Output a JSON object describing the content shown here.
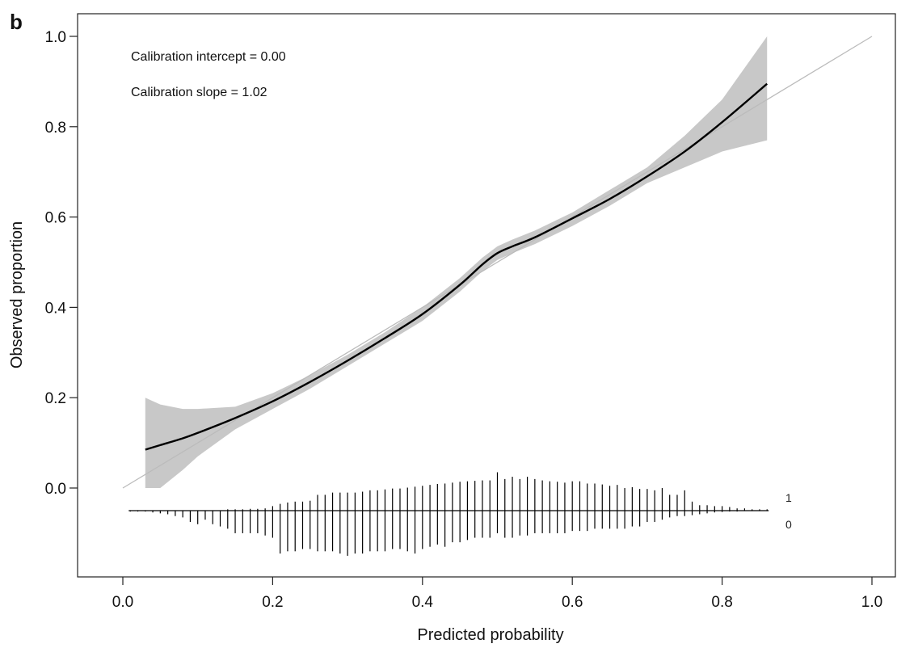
{
  "panel_label": "b",
  "chart_data": {
    "type": "line",
    "xlabel": "Predicted probability",
    "ylabel": "Observed proportion",
    "xlim": [
      0.0,
      1.0
    ],
    "ylim": [
      0.0,
      1.0
    ],
    "xticks": [
      "0.0",
      "0.2",
      "0.4",
      "0.6",
      "0.8",
      "1.0"
    ],
    "yticks": [
      "0.0",
      "0.2",
      "0.4",
      "0.6",
      "0.8",
      "1.0"
    ],
    "grid": false,
    "legend": "none",
    "annotations": [
      "Calibration intercept = 0.00",
      "Calibration slope = 1.02"
    ],
    "reference_line": {
      "x": [
        0.0,
        1.0
      ],
      "y": [
        0.0,
        1.0
      ],
      "color": "#bbbbbb"
    },
    "series": [
      {
        "x": [
          0.03,
          0.05,
          0.08,
          0.1,
          0.15,
          0.2,
          0.25,
          0.3,
          0.35,
          0.4,
          0.45,
          0.48,
          0.5,
          0.52,
          0.55,
          0.6,
          0.65,
          0.7,
          0.75,
          0.8,
          0.86
        ],
        "y": [
          0.085,
          0.095,
          0.11,
          0.122,
          0.155,
          0.192,
          0.235,
          0.282,
          0.332,
          0.385,
          0.45,
          0.495,
          0.52,
          0.535,
          0.555,
          0.597,
          0.64,
          0.69,
          0.745,
          0.81,
          0.895
        ],
        "lower": [
          0.0,
          0.0,
          0.04,
          0.07,
          0.13,
          0.175,
          0.22,
          0.27,
          0.32,
          0.37,
          0.435,
          0.48,
          0.505,
          0.52,
          0.54,
          0.58,
          0.625,
          0.675,
          0.71,
          0.745,
          0.77
        ],
        "upper": [
          0.2,
          0.185,
          0.175,
          0.175,
          0.18,
          0.21,
          0.25,
          0.295,
          0.345,
          0.4,
          0.465,
          0.51,
          0.535,
          0.55,
          0.57,
          0.61,
          0.66,
          0.71,
          0.78,
          0.86,
          1.0
        ],
        "color": "#000000",
        "band_color": "#c8c8c8"
      }
    ],
    "spike_histogram": {
      "labels": [
        "1",
        "0"
      ],
      "x": [
        0.01,
        0.02,
        0.03,
        0.04,
        0.05,
        0.06,
        0.07,
        0.08,
        0.09,
        0.1,
        0.11,
        0.12,
        0.13,
        0.14,
        0.15,
        0.16,
        0.17,
        0.18,
        0.19,
        0.2,
        0.21,
        0.22,
        0.23,
        0.24,
        0.25,
        0.26,
        0.27,
        0.28,
        0.29,
        0.3,
        0.31,
        0.32,
        0.33,
        0.34,
        0.35,
        0.36,
        0.37,
        0.38,
        0.39,
        0.4,
        0.41,
        0.42,
        0.43,
        0.44,
        0.45,
        0.46,
        0.47,
        0.48,
        0.49,
        0.5,
        0.51,
        0.52,
        0.53,
        0.54,
        0.55,
        0.56,
        0.57,
        0.58,
        0.59,
        0.6,
        0.61,
        0.62,
        0.63,
        0.64,
        0.65,
        0.66,
        0.67,
        0.68,
        0.69,
        0.7,
        0.71,
        0.72,
        0.73,
        0.74,
        0.75,
        0.76,
        0.77,
        0.78,
        0.79,
        0.8,
        0.81,
        0.82,
        0.83,
        0.84,
        0.85,
        0.86
      ],
      "ones": [
        0.0,
        0.0,
        0.0,
        0.0,
        0.0,
        0.0,
        0.0,
        0.0,
        0.0,
        0.0,
        0.0,
        0.0,
        0.0,
        0.003,
        0.003,
        0.003,
        0.004,
        0.004,
        0.005,
        0.01,
        0.015,
        0.018,
        0.02,
        0.02,
        0.022,
        0.035,
        0.035,
        0.04,
        0.04,
        0.04,
        0.04,
        0.042,
        0.045,
        0.045,
        0.047,
        0.049,
        0.049,
        0.051,
        0.053,
        0.055,
        0.057,
        0.059,
        0.06,
        0.062,
        0.064,
        0.065,
        0.066,
        0.067,
        0.067,
        0.085,
        0.07,
        0.075,
        0.07,
        0.075,
        0.07,
        0.067,
        0.065,
        0.064,
        0.062,
        0.065,
        0.065,
        0.06,
        0.06,
        0.058,
        0.055,
        0.057,
        0.05,
        0.052,
        0.048,
        0.048,
        0.045,
        0.05,
        0.035,
        0.035,
        0.045,
        0.02,
        0.012,
        0.012,
        0.01,
        0.01,
        0.008,
        0.005,
        0.005,
        0.003,
        0.003,
        0.003
      ],
      "zeros": [
        0.002,
        0.002,
        0.002,
        0.004,
        0.006,
        0.008,
        0.012,
        0.015,
        0.025,
        0.03,
        0.02,
        0.03,
        0.035,
        0.04,
        0.05,
        0.05,
        0.05,
        0.05,
        0.055,
        0.06,
        0.095,
        0.09,
        0.09,
        0.085,
        0.085,
        0.09,
        0.09,
        0.09,
        0.095,
        0.1,
        0.095,
        0.095,
        0.09,
        0.09,
        0.09,
        0.085,
        0.085,
        0.09,
        0.095,
        0.085,
        0.08,
        0.075,
        0.08,
        0.07,
        0.07,
        0.065,
        0.06,
        0.06,
        0.06,
        0.05,
        0.06,
        0.06,
        0.055,
        0.055,
        0.05,
        0.05,
        0.05,
        0.05,
        0.05,
        0.045,
        0.045,
        0.045,
        0.04,
        0.04,
        0.04,
        0.04,
        0.04,
        0.035,
        0.035,
        0.025,
        0.025,
        0.02,
        0.015,
        0.012,
        0.012,
        0.01,
        0.008,
        0.006,
        0.004,
        0.003,
        0.002,
        0.002,
        0.001,
        0.001,
        0.001,
        0.001
      ]
    }
  }
}
